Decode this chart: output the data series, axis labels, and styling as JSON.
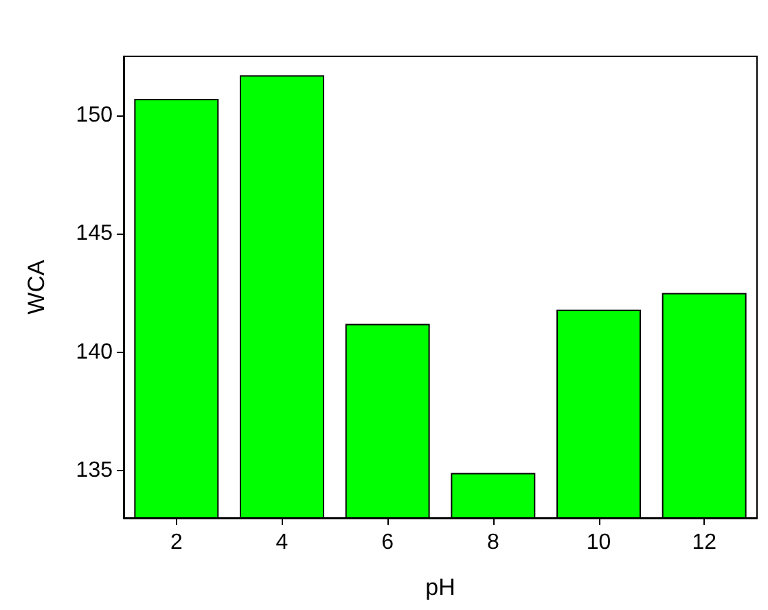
{
  "chart_data": {
    "type": "bar",
    "xlabel": "pH",
    "ylabel": "WCA",
    "categories": [
      "2",
      "4",
      "6",
      "8",
      "10",
      "12"
    ],
    "values": [
      150.7,
      151.7,
      141.2,
      134.9,
      141.8,
      142.5
    ],
    "color": "#00ff00",
    "ylim": [
      133,
      152.5
    ],
    "yticks": [
      135,
      140,
      145,
      150
    ],
    "grid": false
  }
}
